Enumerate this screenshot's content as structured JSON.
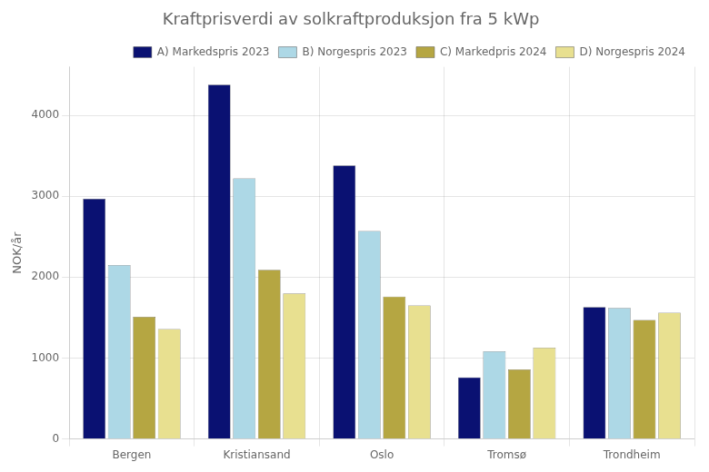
{
  "chart_data": {
    "type": "bar",
    "title": "Kraftprisverdi av solkraftproduksjon fra 5 kWp",
    "y_label": "NOK/år",
    "categories": [
      "Bergen",
      "Kristiansand",
      "Oslo",
      "Tromsø",
      "Trondheim"
    ],
    "series": [
      {
        "name": "A) Markedspris 2023",
        "color": "#0a1172",
        "values": [
          2970,
          4380,
          3380,
          760,
          1630
        ]
      },
      {
        "name": "B) Norgespris 2023",
        "color": "#add8e6",
        "values": [
          2150,
          3220,
          2570,
          1085,
          1620
        ]
      },
      {
        "name": "C) Markedpris 2024",
        "color": "#b5a642",
        "values": [
          1510,
          2090,
          1760,
          860,
          1470
        ]
      },
      {
        "name": "D) Norgespris 2024",
        "color": "#e8e090",
        "values": [
          1360,
          1800,
          1650,
          1130,
          1560
        ]
      }
    ],
    "ylim": [
      0,
      4600
    ],
    "yticks": [
      0,
      1000,
      2000,
      3000,
      4000
    ],
    "grid": true,
    "legend": "upper right"
  }
}
